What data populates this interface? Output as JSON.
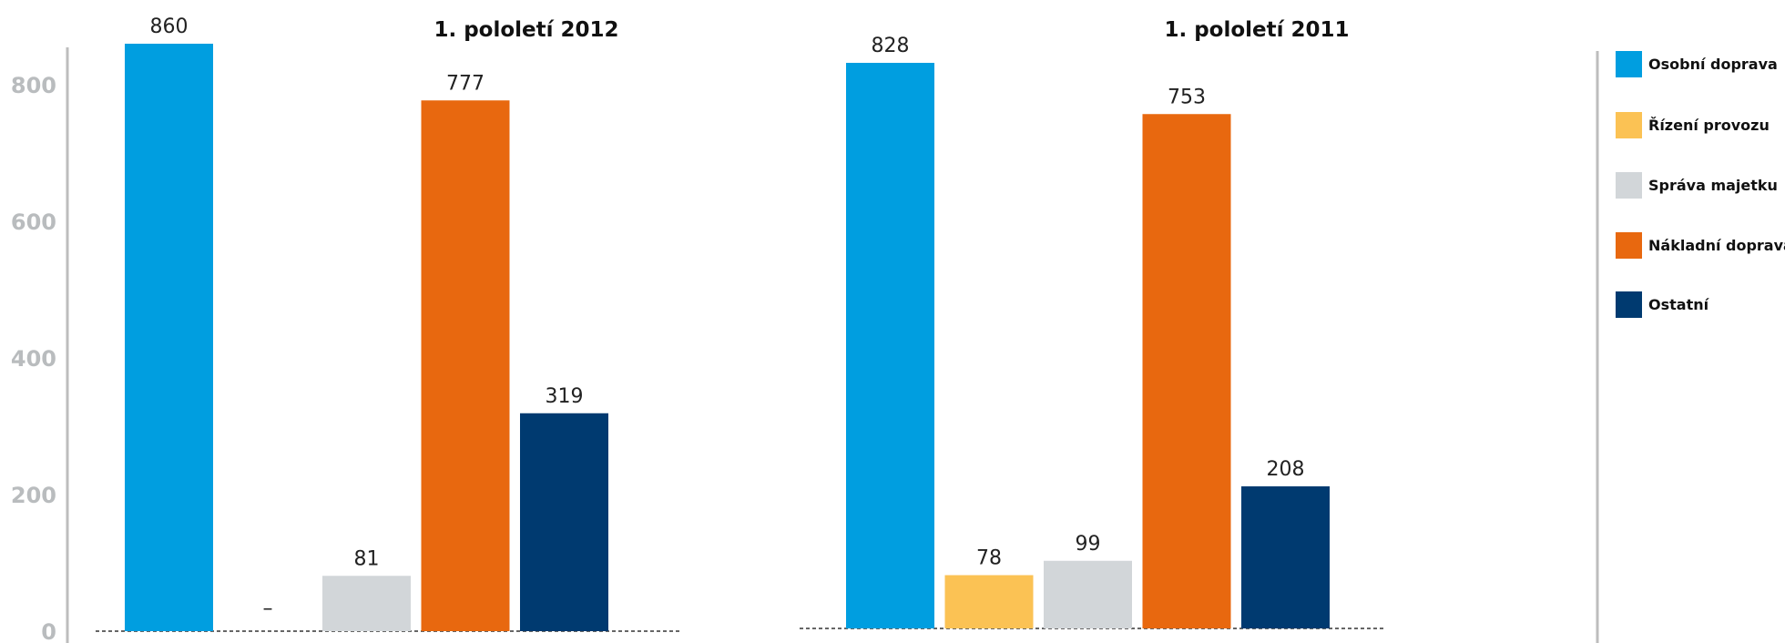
{
  "chart_data": {
    "type": "bar",
    "categories": [
      "Osobní doprava",
      "Řízení provozu",
      "Správa majetku",
      "Nákladní doprava",
      "Ostatní"
    ],
    "colors": [
      "#009ee0",
      "#fbc254",
      "#d2d6d9",
      "#e8680f",
      "#003a70"
    ],
    "ylim": [
      0,
      880
    ],
    "yticks": [
      0,
      200,
      400,
      600,
      800
    ],
    "grid": false,
    "legend_position": "right",
    "panels": [
      {
        "title": "1. pololetí 2012",
        "values": [
          860,
          null,
          81,
          777,
          319
        ],
        "labels": [
          "860",
          "–",
          "81",
          "777",
          "319"
        ]
      },
      {
        "title": "1. pololetí 2011",
        "values": [
          828,
          78,
          99,
          753,
          208
        ],
        "labels": [
          "828",
          "78",
          "99",
          "753",
          "208"
        ]
      }
    ]
  }
}
